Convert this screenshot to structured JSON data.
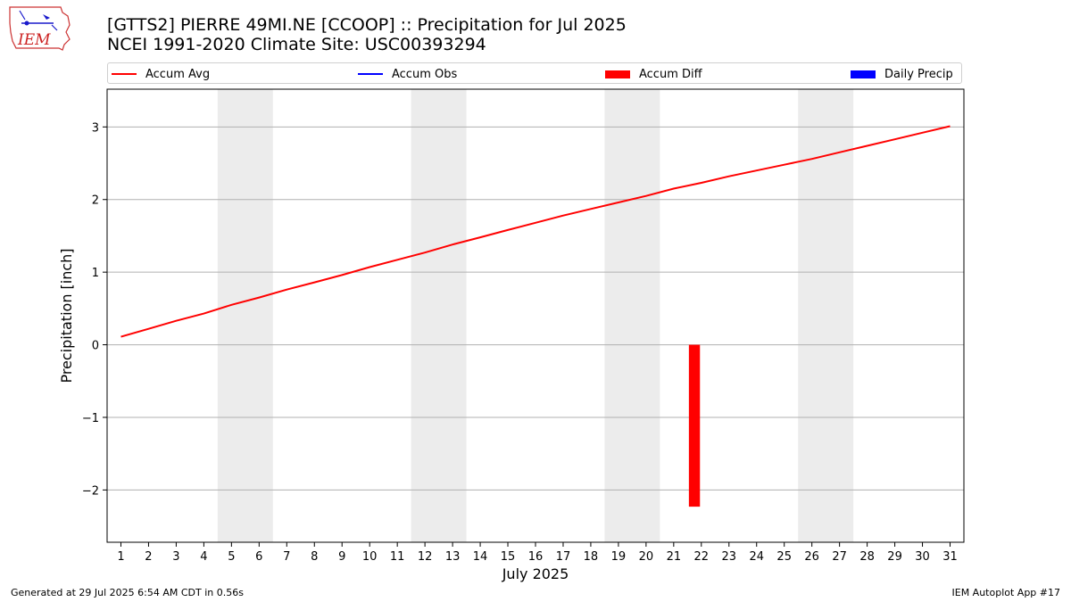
{
  "header": {
    "logo_text": "IEM",
    "title_line1": "[GTTS2] PIERRE 49MI.NE [CCOOP] :: Precipitation for Jul 2025",
    "title_line2": "NCEI 1991-2020 Climate Site: USC00393294"
  },
  "legend": {
    "items": [
      {
        "label": "Accum Avg",
        "color": "#ff0000",
        "kind": "line"
      },
      {
        "label": "Accum Obs",
        "color": "#0000ff",
        "kind": "line"
      },
      {
        "label": "Accum Diff",
        "color": "#ff0000",
        "kind": "patch"
      },
      {
        "label": "Daily Precip",
        "color": "#0000ff",
        "kind": "patch"
      }
    ]
  },
  "footer": {
    "left": "Generated at 29 Jul 2025 6:54 AM CDT in 0.56s",
    "right": "IEM Autoplot App #17"
  },
  "chart_data": {
    "type": "line",
    "xlabel": "July 2025",
    "ylabel": "Precipitation [inch]",
    "x": [
      1,
      2,
      3,
      4,
      5,
      6,
      7,
      8,
      9,
      10,
      11,
      12,
      13,
      14,
      15,
      16,
      17,
      18,
      19,
      20,
      21,
      22,
      23,
      24,
      25,
      26,
      27,
      28,
      29,
      30,
      31
    ],
    "xlim": [
      0.5,
      31.5
    ],
    "ylim": [
      -2.72,
      3.52
    ],
    "yticks": [
      -2,
      -1,
      0,
      1,
      2,
      3
    ],
    "ytick_labels": [
      "−2",
      "−1",
      "0",
      "1",
      "2",
      "3"
    ],
    "grid": "y",
    "weekend_shading": [
      [
        4.5,
        6.5
      ],
      [
        11.5,
        13.5
      ],
      [
        18.5,
        20.5
      ],
      [
        25.5,
        27.5
      ]
    ],
    "series": [
      {
        "name": "Accum Avg",
        "type": "line",
        "color": "#ff0000",
        "values": [
          0.11,
          0.22,
          0.33,
          0.43,
          0.55,
          0.65,
          0.76,
          0.86,
          0.96,
          1.07,
          1.17,
          1.27,
          1.38,
          1.48,
          1.58,
          1.68,
          1.78,
          1.87,
          1.96,
          2.05,
          2.15,
          2.23,
          2.32,
          2.4,
          2.48,
          2.56,
          2.65,
          2.74,
          2.83,
          2.92,
          3.01
        ]
      },
      {
        "name": "Accum Diff",
        "type": "bar",
        "color": "#ff0000",
        "bars": [
          {
            "x": 21.75,
            "value": -2.23
          }
        ]
      }
    ]
  }
}
